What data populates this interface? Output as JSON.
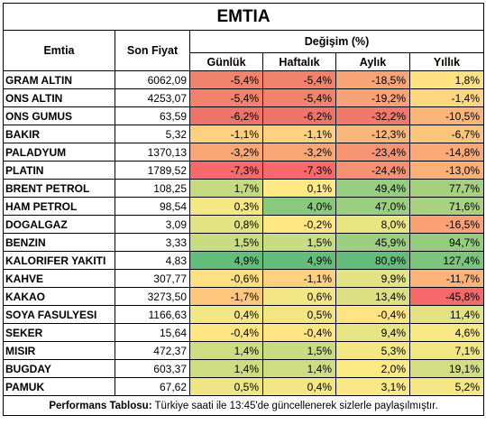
{
  "title": "EMTIA",
  "headers": {
    "commodity": "Emtia",
    "last_price": "Son Fiyat",
    "change": "Değişim (%)",
    "daily": "Günlük",
    "weekly": "Haftalık",
    "monthly": "Aylık",
    "yearly": "Yıllık"
  },
  "rows": [
    {
      "name": "GRAM ALTIN",
      "price": "6062,09",
      "daily": "-5,4%",
      "weekly": "-5,4%",
      "monthly": "-18,5%",
      "yearly": "1,8%",
      "colors": [
        "#f1826c",
        "#f1826c",
        "#f8a477",
        "#ffe282"
      ]
    },
    {
      "name": "ONS ALTIN",
      "price": "4253,07",
      "daily": "-5,4%",
      "weekly": "-5,4%",
      "monthly": "-19,2%",
      "yearly": "-1,4%",
      "colors": [
        "#f1826c",
        "#f1826c",
        "#f7a176",
        "#fed880"
      ]
    },
    {
      "name": "ONS GUMUS",
      "price": "63,59",
      "daily": "-6,2%",
      "weekly": "-6,2%",
      "monthly": "-32,2%",
      "yearly": "-10,5%",
      "colors": [
        "#ee7369",
        "#ee7369",
        "#f0796b",
        "#fbb579"
      ]
    },
    {
      "name": "BAKIR",
      "price": "5,32",
      "daily": "-1,1%",
      "weekly": "-1,1%",
      "monthly": "-12,3%",
      "yearly": "-6,7%",
      "colors": [
        "#fdd17f",
        "#fdd17f",
        "#f9b77a",
        "#fcc57c"
      ]
    },
    {
      "name": "PALADYUM",
      "price": "1370,13",
      "daily": "-3,2%",
      "weekly": "-3,2%",
      "monthly": "-23,4%",
      "yearly": "-14,8%",
      "colors": [
        "#f9a775",
        "#f9a775",
        "#f59472",
        "#faa977"
      ]
    },
    {
      "name": "PLATIN",
      "price": "1789,52",
      "daily": "-7,3%",
      "weekly": "-7,3%",
      "monthly": "-24,4%",
      "yearly": "-13,0%",
      "colors": [
        "#f8696b",
        "#f8696b",
        "#f59172",
        "#fbb078"
      ]
    },
    {
      "name": "BRENT PETROL",
      "price": "108,25",
      "daily": "1,7%",
      "weekly": "0,1%",
      "monthly": "49,4%",
      "yearly": "77,7%",
      "colors": [
        "#c6db81",
        "#ffe984",
        "#96cd7e",
        "#a4d07f"
      ]
    },
    {
      "name": "HAM PETROL",
      "price": "98,54",
      "daily": "0,3%",
      "weekly": "4,0%",
      "monthly": "47,0%",
      "yearly": "71,6%",
      "colors": [
        "#f5e784",
        "#88c97d",
        "#9acf7f",
        "#a9d27f"
      ]
    },
    {
      "name": "DOGALGAZ",
      "price": "3,09",
      "daily": "0,8%",
      "weekly": "-0,2%",
      "monthly": "8,0%",
      "yearly": "-16,5%",
      "colors": [
        "#e2e383",
        "#ffe783",
        "#eae583",
        "#fba176"
      ]
    },
    {
      "name": "BENZIN",
      "price": "3,33",
      "daily": "1,5%",
      "weekly": "1,5%",
      "monthly": "45,9%",
      "yearly": "94,7%",
      "colors": [
        "#cadc81",
        "#c8dc81",
        "#9ccf7f",
        "#94cd7e"
      ]
    },
    {
      "name": "KALORIFER YAKITI",
      "price": "4,83",
      "daily": "4,9%",
      "weekly": "4,9%",
      "monthly": "80,9%",
      "yearly": "127,4%",
      "colors": [
        "#63be7b",
        "#63be7b",
        "#63be7b",
        "#7bc57d"
      ]
    },
    {
      "name": "KAHVE",
      "price": "307,77",
      "daily": "-0,6%",
      "weekly": "-1,1%",
      "monthly": "9,9%",
      "yearly": "-11,7%",
      "colors": [
        "#fee082",
        "#fdd17f",
        "#e4e383",
        "#fbb579"
      ]
    },
    {
      "name": "KAKAO",
      "price": "3273,50",
      "daily": "-1,7%",
      "weekly": "0,6%",
      "monthly": "13,4%",
      "yearly": "-45,8%",
      "colors": [
        "#fdc87d",
        "#f2e784",
        "#dbe182",
        "#f8696b"
      ]
    },
    {
      "name": "SOYA FASULYESI",
      "price": "1166,63",
      "daily": "0,4%",
      "weekly": "0,5%",
      "monthly": "-0,4%",
      "yearly": "11,4%",
      "colors": [
        "#f1e784",
        "#f0e784",
        "#fee483",
        "#e3e383"
      ]
    },
    {
      "name": "SEKER",
      "price": "15,64",
      "daily": "-0,4%",
      "weekly": "-0,4%",
      "monthly": "9,4%",
      "yearly": "4,6%",
      "colors": [
        "#ffe683",
        "#ffe683",
        "#e6e483",
        "#f7e884"
      ]
    },
    {
      "name": "MISIR",
      "price": "472,37",
      "daily": "1,4%",
      "weekly": "1,5%",
      "monthly": "5,3%",
      "yearly": "7,1%",
      "colors": [
        "#cedd82",
        "#cadc81",
        "#f2e784",
        "#efe784"
      ]
    },
    {
      "name": "BUGDAY",
      "price": "603,37",
      "daily": "1,4%",
      "weekly": "1,4%",
      "monthly": "2,0%",
      "yearly": "19,1%",
      "colors": [
        "#cedd82",
        "#cedd82",
        "#fbe983",
        "#d3de82"
      ]
    },
    {
      "name": "PAMUK",
      "price": "67,62",
      "daily": "0,5%",
      "weekly": "0,4%",
      "monthly": "3,1%",
      "yearly": "5,2%",
      "colors": [
        "#eee684",
        "#f2e784",
        "#f8e984",
        "#f5e884"
      ]
    }
  ],
  "footer": {
    "label": "Performans Tablosu:",
    "text": " Türkiye saati ile 13:45'de güncellenerek sizlerle paylaşılmıştır."
  }
}
